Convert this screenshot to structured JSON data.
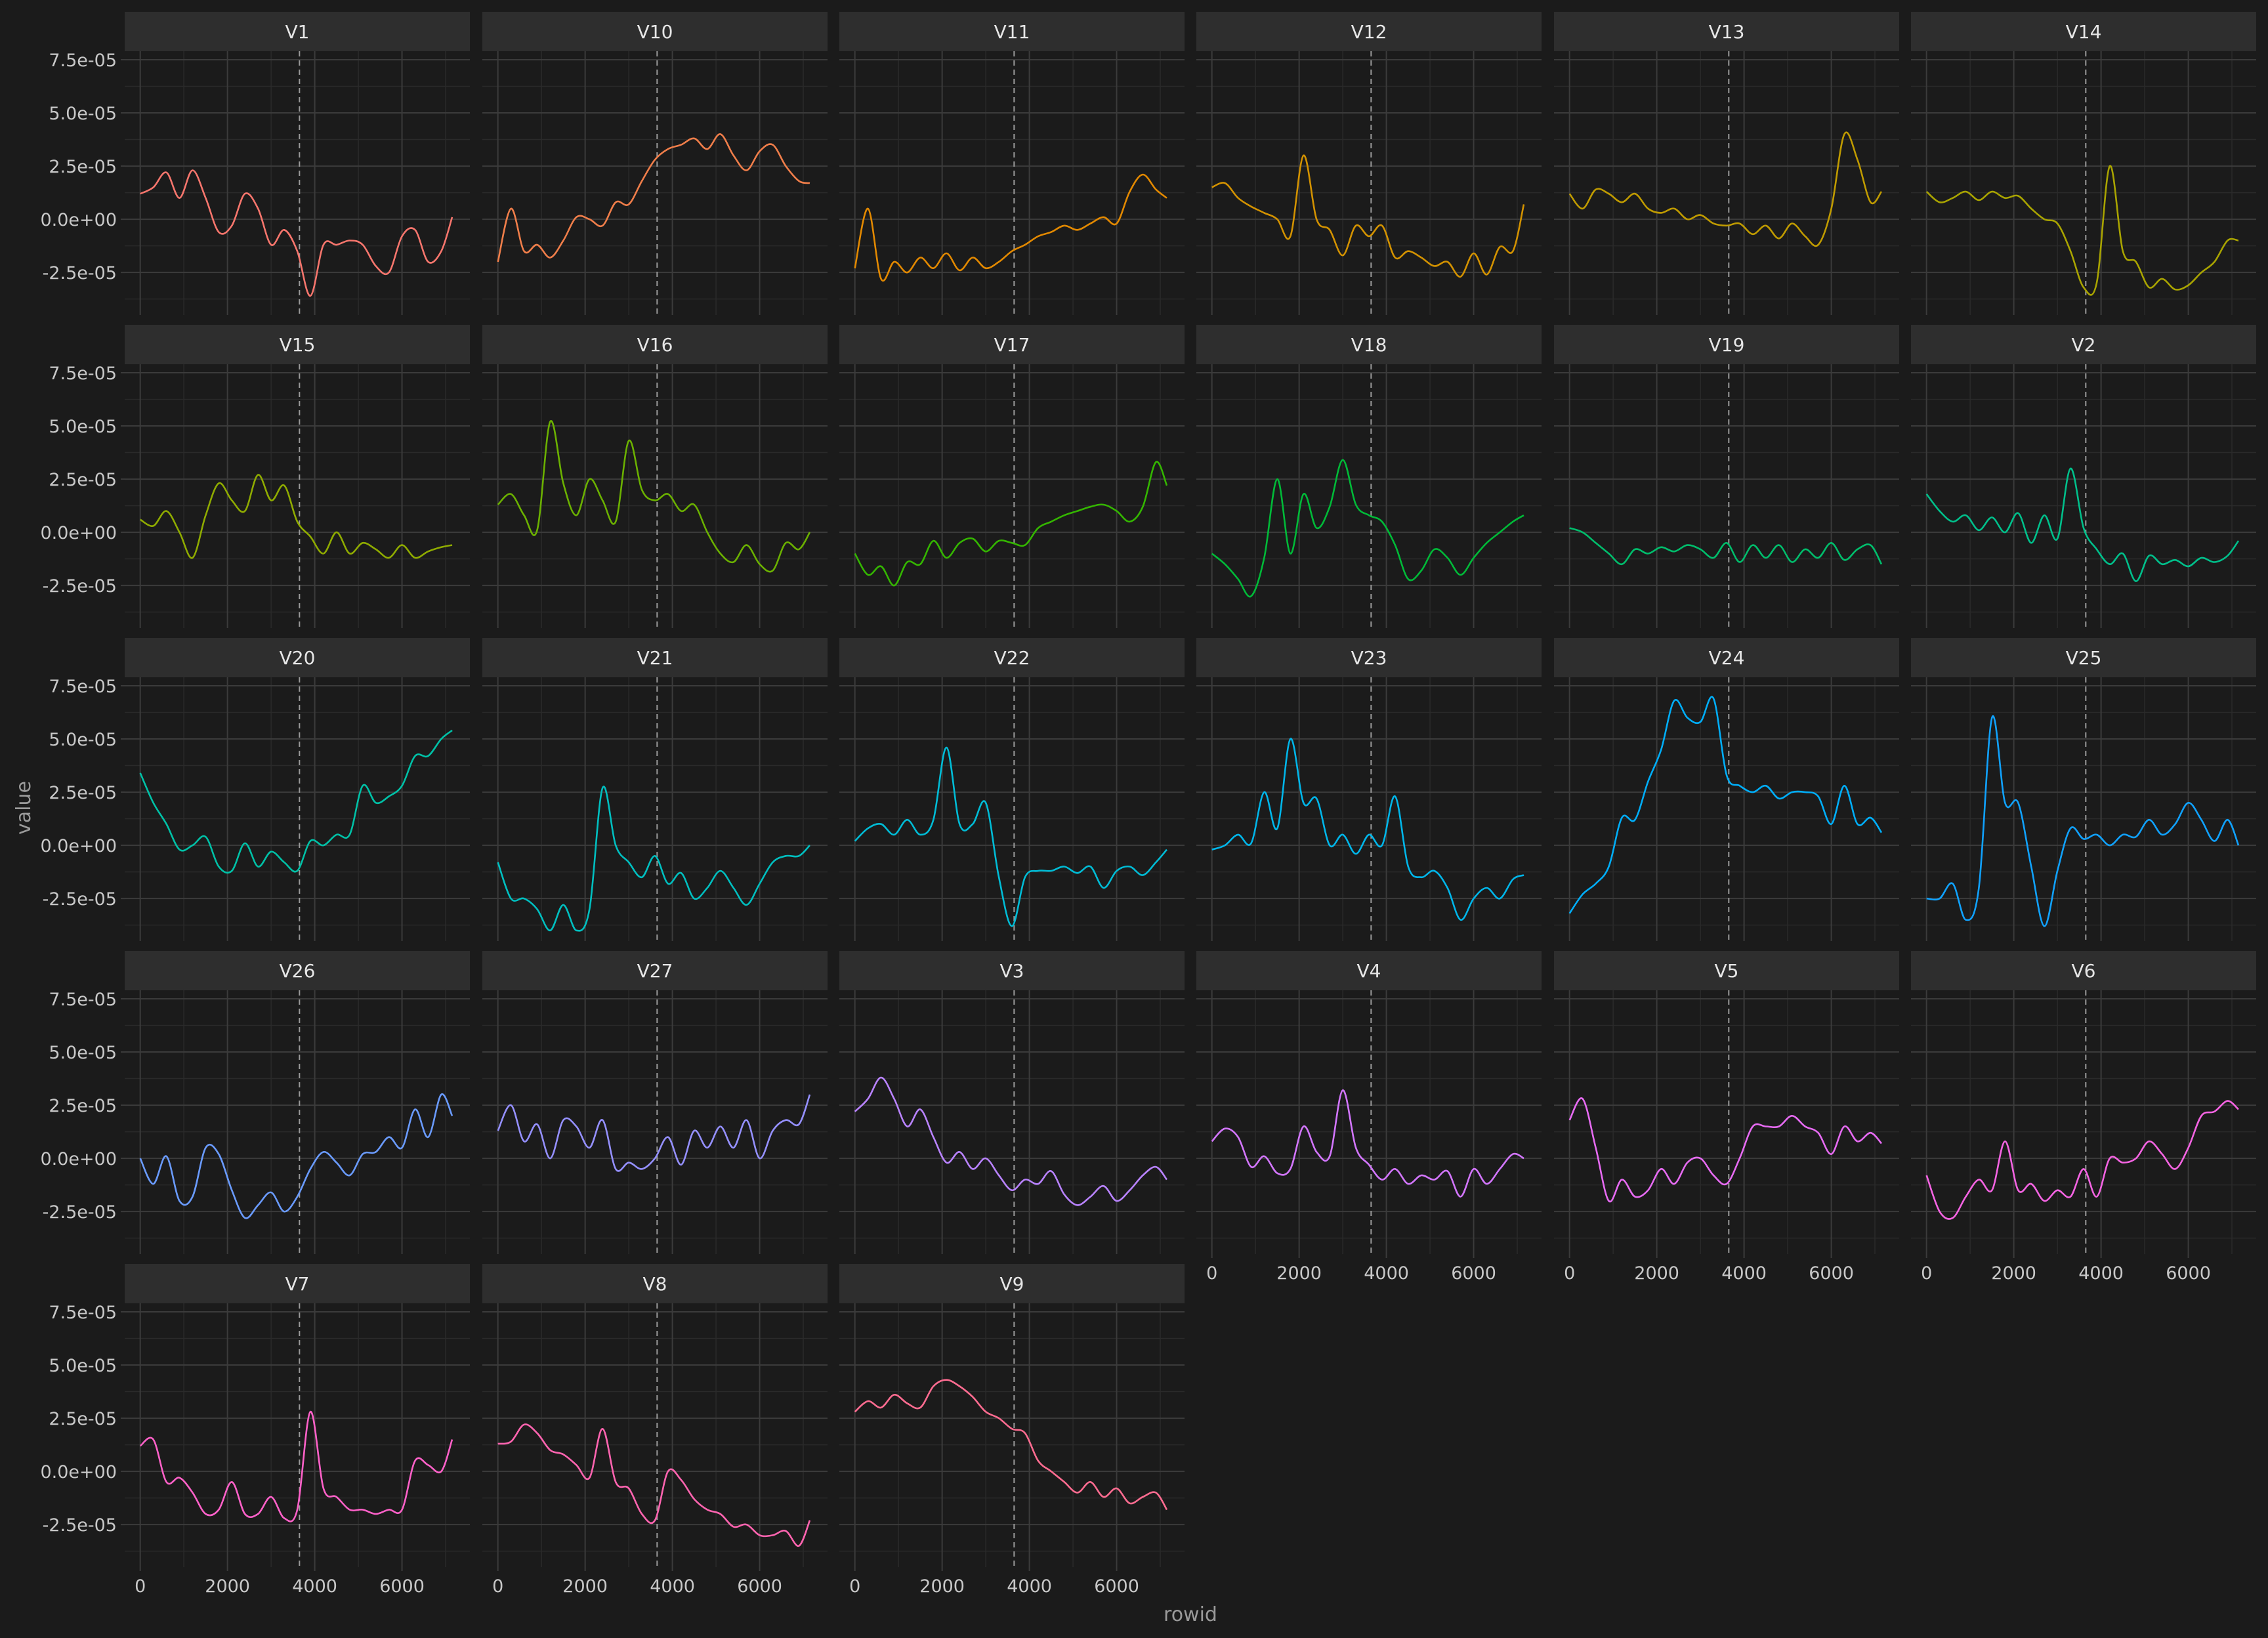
{
  "chart_data": {
    "type": "line",
    "layout": "facet-wrap",
    "xlabel": "rowid",
    "ylabel": "value",
    "xlim": [
      0,
      7200
    ],
    "ylim": [
      -4.5e-05,
      7.9e-05
    ],
    "x_ticks": [
      0,
      2000,
      4000,
      6000
    ],
    "x_tick_labels": [
      "0",
      "2000",
      "4000",
      "6000"
    ],
    "y_ticks": [
      -2.5e-05,
      0,
      2.5e-05,
      5e-05,
      7.5e-05
    ],
    "y_tick_labels": [
      "-2.5e-05",
      "0.0e+00",
      "2.5e-05",
      "5.0e-05",
      "7.5e-05"
    ],
    "vline_x": 3650,
    "grid": true,
    "legend": "none",
    "colors": {
      "background": "#1b1b1b",
      "strip": "#2e2e2e",
      "grid_major": "#3b3b3b",
      "grid_minor": "#2a2a2a",
      "text": "#c8c8c8",
      "vline": "#9a9a9a"
    },
    "x": [
      0,
      300,
      600,
      900,
      1200,
      1500,
      1800,
      2100,
      2400,
      2700,
      3000,
      3300,
      3600,
      3900,
      4200,
      4500,
      4800,
      5100,
      5400,
      5700,
      6000,
      6300,
      6600,
      6900,
      7150
    ],
    "series": [
      {
        "name": "V1",
        "color": "#f8766d",
        "values": [
          1.2e-05,
          1.5e-05,
          2.2e-05,
          1e-05,
          2.3e-05,
          1e-05,
          -6e-06,
          -3e-06,
          1.2e-05,
          5e-06,
          -1.2e-05,
          -5e-06,
          -1.5e-05,
          -3.6e-05,
          -1.2e-05,
          -1.2e-05,
          -1e-05,
          -1.2e-05,
          -2.2e-05,
          -2.5e-05,
          -8e-06,
          -5e-06,
          -2e-05,
          -1.5e-05,
          1e-06
        ]
      },
      {
        "name": "V10",
        "color": "#f07e4a",
        "values": [
          -2e-05,
          5e-06,
          -1.5e-05,
          -1.2e-05,
          -1.8e-05,
          -1e-05,
          1e-06,
          0.0,
          -3e-06,
          8e-06,
          7e-06,
          1.8e-05,
          2.8e-05,
          3.3e-05,
          3.5e-05,
          3.8e-05,
          3.3e-05,
          4e-05,
          3e-05,
          2.3e-05,
          3.2e-05,
          3.5e-05,
          2.5e-05,
          1.8e-05,
          1.7e-05
        ]
      },
      {
        "name": "V11",
        "color": "#e38900",
        "values": [
          -2.3e-05,
          5e-06,
          -2.8e-05,
          -2e-05,
          -2.5e-05,
          -1.8e-05,
          -2.3e-05,
          -1.6e-05,
          -2.4e-05,
          -1.8e-05,
          -2.3e-05,
          -2e-05,
          -1.5e-05,
          -1.2e-05,
          -8e-06,
          -6e-06,
          -3e-06,
          -5e-06,
          -2e-06,
          1e-06,
          -2e-06,
          1.3e-05,
          2.1e-05,
          1.4e-05,
          1e-05
        ]
      },
      {
        "name": "V12",
        "color": "#d39200",
        "values": [
          1.5e-05,
          1.7e-05,
          1e-05,
          6e-06,
          3e-06,
          0.0,
          -8e-06,
          3e-05,
          0.0,
          -5e-06,
          -1.7e-05,
          -3e-06,
          -8e-06,
          -3e-06,
          -1.8e-05,
          -1.5e-05,
          -1.8e-05,
          -2.2e-05,
          -2e-05,
          -2.7e-05,
          -1.6e-05,
          -2.6e-05,
          -1.3e-05,
          -1.5e-05,
          7e-06
        ]
      },
      {
        "name": "V13",
        "color": "#c09b00",
        "values": [
          1.2e-05,
          5e-06,
          1.4e-05,
          1.2e-05,
          8e-06,
          1.2e-05,
          5e-06,
          3e-06,
          5e-06,
          0.0,
          2e-06,
          -2e-06,
          -3e-06,
          -2e-06,
          -7e-06,
          -3e-06,
          -9e-06,
          -2e-06,
          -8e-06,
          -1.2e-05,
          5e-06,
          4e-05,
          2.8e-05,
          8e-06,
          1.3e-05
        ]
      },
      {
        "name": "V14",
        "color": "#a9a400",
        "values": [
          1.3e-05,
          8e-06,
          1e-05,
          1.3e-05,
          9e-06,
          1.3e-05,
          1e-05,
          1.1e-05,
          5e-06,
          0.0,
          -2e-06,
          -1.5e-05,
          -3.2e-05,
          -3e-05,
          2.5e-05,
          -1.5e-05,
          -2e-05,
          -3.2e-05,
          -2.8e-05,
          -3.3e-05,
          -3.1e-05,
          -2.5e-05,
          -2e-05,
          -1e-05,
          -1e-05
        ]
      },
      {
        "name": "V15",
        "color": "#8fab00",
        "values": [
          6e-06,
          3e-06,
          1e-05,
          0.0,
          -1.2e-05,
          8e-06,
          2.3e-05,
          1.5e-05,
          1e-05,
          2.7e-05,
          1.5e-05,
          2.2e-05,
          5e-06,
          -2e-06,
          -1e-05,
          0.0,
          -1e-05,
          -5e-06,
          -8e-06,
          -1.2e-05,
          -6e-06,
          -1.2e-05,
          -9e-06,
          -7e-06,
          -6e-06
        ]
      },
      {
        "name": "V16",
        "color": "#6bb100",
        "values": [
          1.3e-05,
          1.8e-05,
          8e-06,
          1e-06,
          5.2e-05,
          2.3e-05,
          8e-06,
          2.5e-05,
          1.5e-05,
          5e-06,
          4.3e-05,
          2e-05,
          1.5e-05,
          1.8e-05,
          1e-05,
          1.3e-05,
          0.0,
          -1e-05,
          -1.4e-05,
          -6e-06,
          -1.5e-05,
          -1.8e-05,
          -5e-06,
          -8e-06,
          0.0
        ]
      },
      {
        "name": "V17",
        "color": "#34b600",
        "values": [
          -1e-05,
          -2e-05,
          -1.6e-05,
          -2.5e-05,
          -1.4e-05,
          -1.5e-05,
          -4e-06,
          -1.2e-05,
          -5e-06,
          -3e-06,
          -9e-06,
          -4e-06,
          -5e-06,
          -6e-06,
          2e-06,
          5e-06,
          8e-06,
          1e-05,
          1.2e-05,
          1.3e-05,
          1e-05,
          5e-06,
          1.2e-05,
          3.3e-05,
          2.2e-05
        ]
      },
      {
        "name": "V18",
        "color": "#00ba38",
        "values": [
          -1e-05,
          -1.5e-05,
          -2.2e-05,
          -3e-05,
          -1.2e-05,
          2.5e-05,
          -1e-05,
          1.8e-05,
          2e-06,
          1.2e-05,
          3.4e-05,
          1.3e-05,
          8e-06,
          5e-06,
          -6e-06,
          -2.2e-05,
          -1.8e-05,
          -8e-06,
          -1.2e-05,
          -2e-05,
          -1.2e-05,
          -5e-06,
          0.0,
          5e-06,
          8e-06
        ]
      },
      {
        "name": "V19",
        "color": "#00be6c",
        "values": [
          2e-06,
          0.0,
          -5e-06,
          -1e-05,
          -1.5e-05,
          -8e-06,
          -1e-05,
          -7e-06,
          -9e-06,
          -6e-06,
          -8e-06,
          -1.2e-05,
          -5e-06,
          -1.4e-05,
          -6e-06,
          -1.2e-05,
          -6e-06,
          -1.4e-05,
          -8e-06,
          -1.2e-05,
          -5e-06,
          -1.3e-05,
          -8e-06,
          -6e-06,
          -1.5e-05
        ]
      },
      {
        "name": "V2",
        "color": "#00c08b",
        "values": [
          1.8e-05,
          1e-05,
          5e-06,
          8e-06,
          1e-06,
          7e-06,
          0.0,
          9e-06,
          -5e-06,
          8e-06,
          -3e-06,
          3e-05,
          2e-06,
          -8e-06,
          -1.5e-05,
          -1e-05,
          -2.3e-05,
          -1.1e-05,
          -1.5e-05,
          -1.3e-05,
          -1.6e-05,
          -1.2e-05,
          -1.4e-05,
          -1.1e-05,
          -4e-06
        ]
      },
      {
        "name": "V20",
        "color": "#00c1a7",
        "values": [
          3.4e-05,
          2e-05,
          1e-05,
          -2e-06,
          0.0,
          4e-06,
          -1e-05,
          -1.2e-05,
          1e-06,
          -1e-05,
          -3e-06,
          -8e-06,
          -1.2e-05,
          2e-06,
          0.0,
          5e-06,
          5e-06,
          2.8e-05,
          2e-05,
          2.3e-05,
          2.8e-05,
          4.2e-05,
          4.2e-05,
          5e-05,
          5.4e-05
        ]
      },
      {
        "name": "V21",
        "color": "#00bfc0",
        "values": [
          -8e-06,
          -2.5e-05,
          -2.5e-05,
          -3e-05,
          -4e-05,
          -2.8e-05,
          -4e-05,
          -3e-05,
          2.7e-05,
          0.0,
          -8e-06,
          -1.5e-05,
          -5e-06,
          -1.8e-05,
          -1.3e-05,
          -2.5e-05,
          -2e-05,
          -1.2e-05,
          -2e-05,
          -2.8e-05,
          -1.8e-05,
          -8e-06,
          -5e-06,
          -5e-06,
          0.0
        ]
      },
      {
        "name": "V22",
        "color": "#00bcd6",
        "values": [
          2e-06,
          8e-06,
          1e-05,
          5e-06,
          1.2e-05,
          5e-06,
          1.2e-05,
          4.6e-05,
          1e-05,
          1e-05,
          2e-05,
          -1.5e-05,
          -3.8e-05,
          -1.5e-05,
          -1.2e-05,
          -1.2e-05,
          -1e-05,
          -1.3e-05,
          -1e-05,
          -2e-05,
          -1.2e-05,
          -1e-05,
          -1.4e-05,
          -8e-06,
          -2e-06
        ]
      },
      {
        "name": "V23",
        "color": "#00b6ea",
        "values": [
          -2e-06,
          0.0,
          5e-06,
          1e-06,
          2.5e-05,
          8e-06,
          5e-05,
          2e-05,
          2.2e-05,
          0.0,
          5e-06,
          -4e-06,
          5e-06,
          0.0,
          2.3e-05,
          -1e-05,
          -1.5e-05,
          -1.2e-05,
          -2e-05,
          -3.5e-05,
          -2.5e-05,
          -2e-05,
          -2.5e-05,
          -1.6e-05,
          -1.4e-05
        ]
      },
      {
        "name": "V24",
        "color": "#00aef9",
        "values": [
          -3.2e-05,
          -2.3e-05,
          -1.8e-05,
          -1e-05,
          1.3e-05,
          1.2e-05,
          3e-05,
          4.5e-05,
          6.8e-05,
          6e-05,
          5.8e-05,
          6.9e-05,
          3.3e-05,
          2.8e-05,
          2.5e-05,
          2.8e-05,
          2.2e-05,
          2.5e-05,
          2.5e-05,
          2.3e-05,
          1e-05,
          2.8e-05,
          1e-05,
          1.3e-05,
          6e-06
        ]
      },
      {
        "name": "V25",
        "color": "#10a2ff",
        "values": [
          -2.5e-05,
          -2.5e-05,
          -1.8e-05,
          -3.5e-05,
          -2e-05,
          6e-05,
          2e-05,
          2e-05,
          -1e-05,
          -3.8e-05,
          -1.2e-05,
          8e-06,
          3e-06,
          5e-06,
          0.0,
          5e-06,
          4e-06,
          1.2e-05,
          5e-06,
          1e-05,
          2e-05,
          1.2e-05,
          2e-06,
          1.2e-05,
          0.0
        ]
      },
      {
        "name": "V26",
        "color": "#6a9bff",
        "values": [
          0.0,
          -1.2e-05,
          1e-06,
          -2e-05,
          -1.8e-05,
          5e-06,
          2e-06,
          -1.5e-05,
          -2.8e-05,
          -2.2e-05,
          -1.6e-05,
          -2.5e-05,
          -1.8e-05,
          -5e-06,
          3e-06,
          -2e-06,
          -8e-06,
          2e-06,
          3e-06,
          1e-05,
          5e-06,
          2.3e-05,
          1e-05,
          3e-05,
          2e-05
        ]
      },
      {
        "name": "V27",
        "color": "#9590ff",
        "values": [
          1.3e-05,
          2.5e-05,
          8e-06,
          1.6e-05,
          0.0,
          1.8e-05,
          1.5e-05,
          5e-06,
          1.8e-05,
          -5e-06,
          -2e-06,
          -5e-06,
          0.0,
          1e-05,
          -3e-06,
          1.3e-05,
          5e-06,
          1.5e-05,
          5e-06,
          1.8e-05,
          0.0,
          1.3e-05,
          1.8e-05,
          1.6e-05,
          3e-05
        ]
      },
      {
        "name": "V3",
        "color": "#b983ff",
        "values": [
          2.2e-05,
          2.8e-05,
          3.8e-05,
          2.8e-05,
          1.5e-05,
          2.3e-05,
          1e-05,
          -2e-06,
          3e-06,
          -5e-06,
          0.0,
          -8e-06,
          -1.5e-05,
          -1e-05,
          -1.2e-05,
          -6e-06,
          -1.7e-05,
          -2.2e-05,
          -1.8e-05,
          -1.3e-05,
          -2e-05,
          -1.5e-05,
          -8e-06,
          -4e-06,
          -1e-05
        ]
      },
      {
        "name": "V4",
        "color": "#d376ff",
        "values": [
          8e-06,
          1.4e-05,
          1e-05,
          -4e-06,
          1e-06,
          -7e-06,
          -5e-06,
          1.5e-05,
          3e-06,
          1e-06,
          3.2e-05,
          5e-06,
          -3e-06,
          -1e-05,
          -5e-06,
          -1.2e-05,
          -8e-06,
          -1e-05,
          -6e-06,
          -1.8e-05,
          -5e-06,
          -1.2e-05,
          -5e-06,
          2e-06,
          0.0
        ]
      },
      {
        "name": "V5",
        "color": "#e76bf3",
        "values": [
          1.8e-05,
          2.8e-05,
          5e-06,
          -2e-05,
          -1e-05,
          -1.8e-05,
          -1.5e-05,
          -5e-06,
          -1.2e-05,
          -2e-06,
          0.0,
          -8e-06,
          -1.2e-05,
          0.0,
          1.5e-05,
          1.5e-05,
          1.5e-05,
          2e-05,
          1.5e-05,
          1.2e-05,
          2e-06,
          1.5e-05,
          8e-06,
          1.2e-05,
          7e-06
        ]
      },
      {
        "name": "V6",
        "color": "#f564e3",
        "values": [
          -8e-06,
          -2.5e-05,
          -2.8e-05,
          -1.8e-05,
          -1e-05,
          -1.5e-05,
          8e-06,
          -1.5e-05,
          -1.2e-05,
          -2e-05,
          -1.5e-05,
          -1.8e-05,
          -5e-06,
          -1.8e-05,
          0.0,
          -2e-06,
          0.0,
          8e-06,
          2e-06,
          -5e-06,
          5e-06,
          2e-05,
          2.2e-05,
          2.7e-05,
          2.3e-05
        ]
      },
      {
        "name": "V7",
        "color": "#ff61c9",
        "values": [
          1.2e-05,
          1.5e-05,
          -5e-06,
          -3e-06,
          -1e-05,
          -2e-05,
          -1.8e-05,
          -5e-06,
          -2e-05,
          -2e-05,
          -1.2e-05,
          -2.2e-05,
          -1.8e-05,
          2.8e-05,
          -8e-06,
          -1.2e-05,
          -1.8e-05,
          -1.8e-05,
          -2e-05,
          -1.8e-05,
          -1.8e-05,
          5e-06,
          3e-06,
          0.0,
          1.5e-05
        ]
      },
      {
        "name": "V8",
        "color": "#ff64b0",
        "values": [
          1.3e-05,
          1.4e-05,
          2.2e-05,
          1.8e-05,
          1e-05,
          8e-06,
          3e-06,
          -3e-06,
          2e-05,
          -5e-06,
          -8e-06,
          -2e-05,
          -2.3e-05,
          0.0,
          -4e-06,
          -1.3e-05,
          -1.8e-05,
          -2e-05,
          -2.6e-05,
          -2.5e-05,
          -3e-05,
          -3e-05,
          -2.8e-05,
          -3.5e-05,
          -2.3e-05
        ]
      },
      {
        "name": "V9",
        "color": "#ff6c91",
        "values": [
          2.8e-05,
          3.3e-05,
          3e-05,
          3.6e-05,
          3.2e-05,
          3e-05,
          4e-05,
          4.3e-05,
          4e-05,
          3.5e-05,
          2.8e-05,
          2.5e-05,
          2e-05,
          1.8e-05,
          5e-06,
          0.0,
          -5e-06,
          -1e-05,
          -5e-06,
          -1.2e-05,
          -8e-06,
          -1.5e-05,
          -1.2e-05,
          -1e-05,
          -1.8e-05
        ]
      }
    ]
  }
}
